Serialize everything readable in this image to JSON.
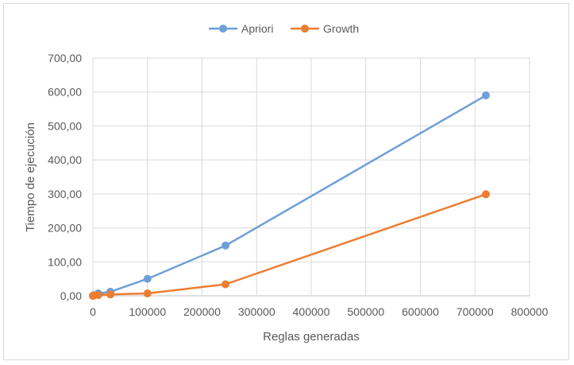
{
  "chart_data": {
    "type": "line",
    "title": "",
    "xlabel": "Reglas generadas",
    "ylabel": "Tiempo de ejecución",
    "xlim": [
      0,
      800000
    ],
    "ylim": [
      0,
      700
    ],
    "xticks": [
      0,
      100000,
      200000,
      300000,
      400000,
      500000,
      600000,
      700000,
      800000
    ],
    "xtick_labels": [
      "0",
      "100000",
      "200000",
      "300000",
      "400000",
      "500000",
      "600000",
      "700000",
      "800000"
    ],
    "yticks": [
      0,
      100,
      200,
      300,
      400,
      500,
      600,
      700
    ],
    "ytick_labels": [
      "0,00",
      "100,00",
      "200,00",
      "300,00",
      "400,00",
      "500,00",
      "600,00",
      "700,00"
    ],
    "grid": true,
    "legend_position": "top",
    "series": [
      {
        "name": "Apriori",
        "color": "#6f9fd8",
        "points": [
          [
            0,
            0
          ],
          [
            2000,
            2
          ],
          [
            10000,
            7
          ],
          [
            32000,
            12
          ],
          [
            100000,
            50
          ],
          [
            243000,
            148
          ],
          [
            720000,
            590
          ]
        ]
      },
      {
        "name": "Growth",
        "color": "#ed7d31",
        "points": [
          [
            0,
            0
          ],
          [
            2000,
            1
          ],
          [
            10000,
            2
          ],
          [
            32000,
            4
          ],
          [
            100000,
            7
          ],
          [
            243000,
            34
          ],
          [
            720000,
            299
          ]
        ]
      }
    ]
  }
}
